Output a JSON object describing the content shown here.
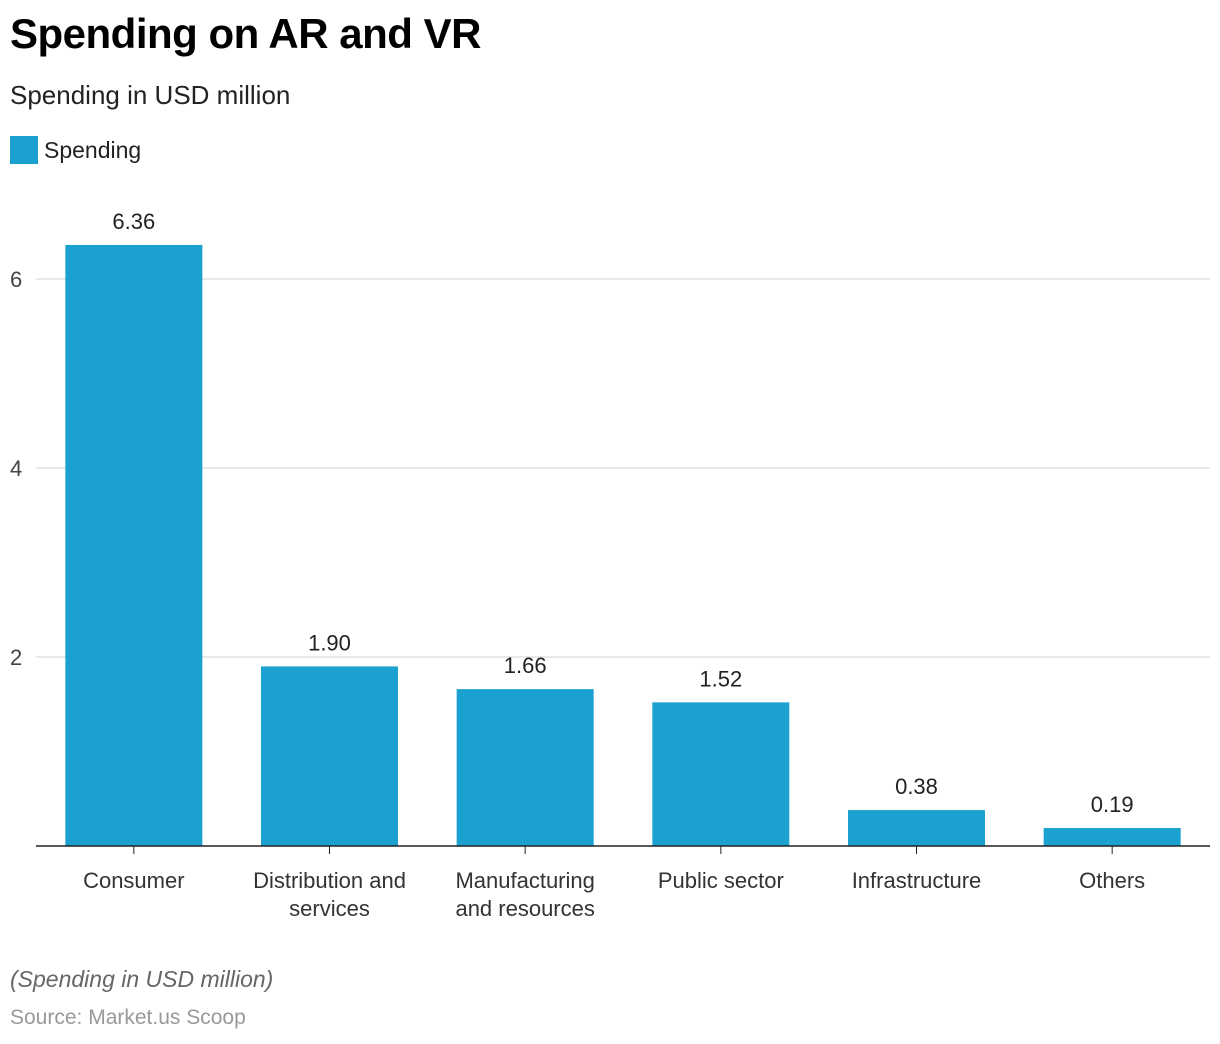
{
  "title": "Spending on AR and VR",
  "subtitle": "Spending in USD million",
  "note": "(Spending in USD million)",
  "source": "Source: Market.us Scoop",
  "colors": {
    "bar": "#1aa1cf",
    "grid": "#d0d0d0",
    "axis": "#222222"
  },
  "chart_data": {
    "type": "bar",
    "categories": [
      [
        "Consumer"
      ],
      [
        "Distribution and",
        "services"
      ],
      [
        "Manufacturing",
        "and resources"
      ],
      [
        "Public sector"
      ],
      [
        "Infrastructure"
      ],
      [
        "Others"
      ]
    ],
    "series": [
      {
        "name": "Spending",
        "values": [
          6.36,
          1.9,
          1.66,
          1.52,
          0.38,
          0.19
        ],
        "labels": [
          "6.36",
          "1.90",
          "1.66",
          "1.52",
          "0.38",
          "0.19"
        ]
      }
    ],
    "yticks": [
      2,
      4,
      6
    ],
    "ylim": [
      0,
      6.8
    ],
    "grid": true,
    "legend": "top-left",
    "xlabel": "",
    "ylabel": ""
  }
}
